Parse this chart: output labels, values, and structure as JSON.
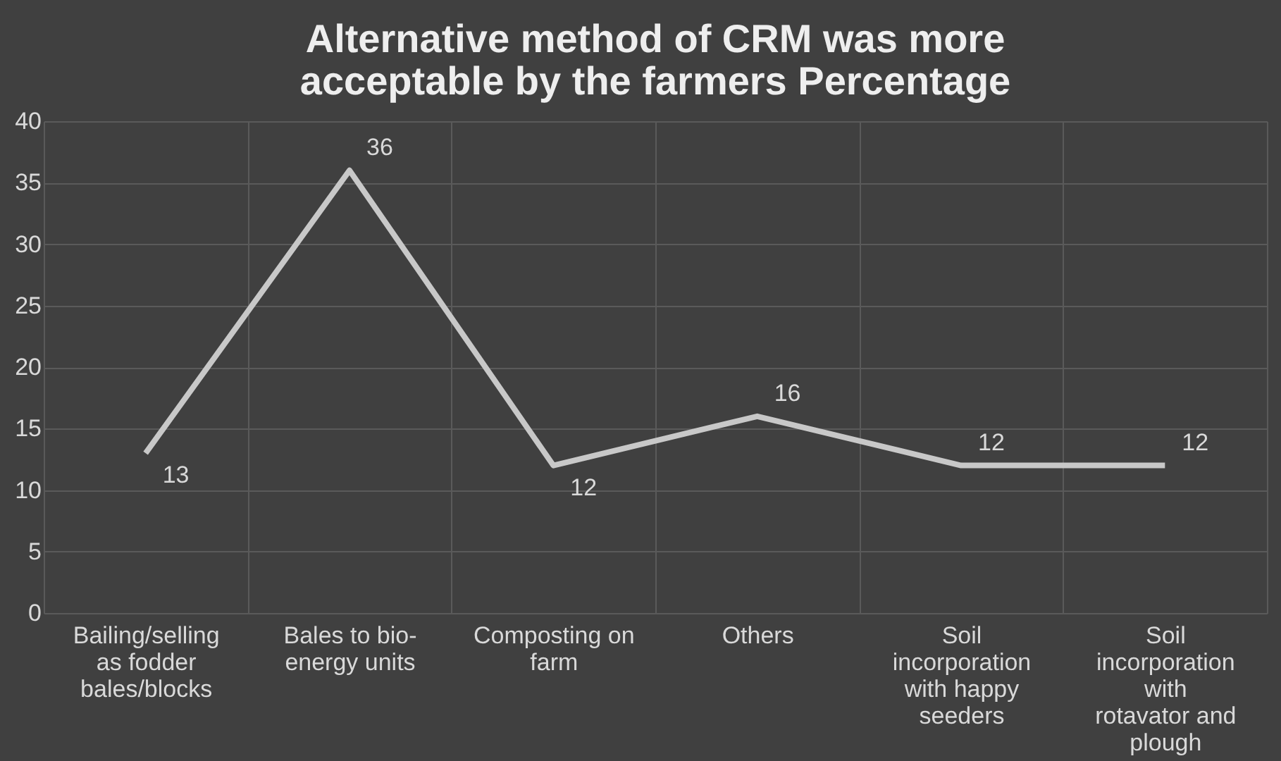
{
  "chart_data": {
    "type": "line",
    "title": "Alternative method of CRM was more acceptable by the farmers Percentage",
    "categories": [
      "Bailing/selling as fodder bales/blocks",
      "Bales to bio-energy units",
      "Composting on farm",
      "Others",
      "Soil incorporation with happy seeders",
      "Soil incorporation with rotavator and plough"
    ],
    "series": [
      {
        "color": "#c8c8c8",
        "values": [
          13,
          36,
          12,
          16,
          12,
          12
        ]
      }
    ],
    "ylim": [
      0,
      40
    ],
    "yticks": [
      0,
      5,
      10,
      15,
      20,
      25,
      30,
      35,
      40
    ],
    "grid": true,
    "data_labels": true,
    "marker": "none",
    "line_style": "solid"
  }
}
